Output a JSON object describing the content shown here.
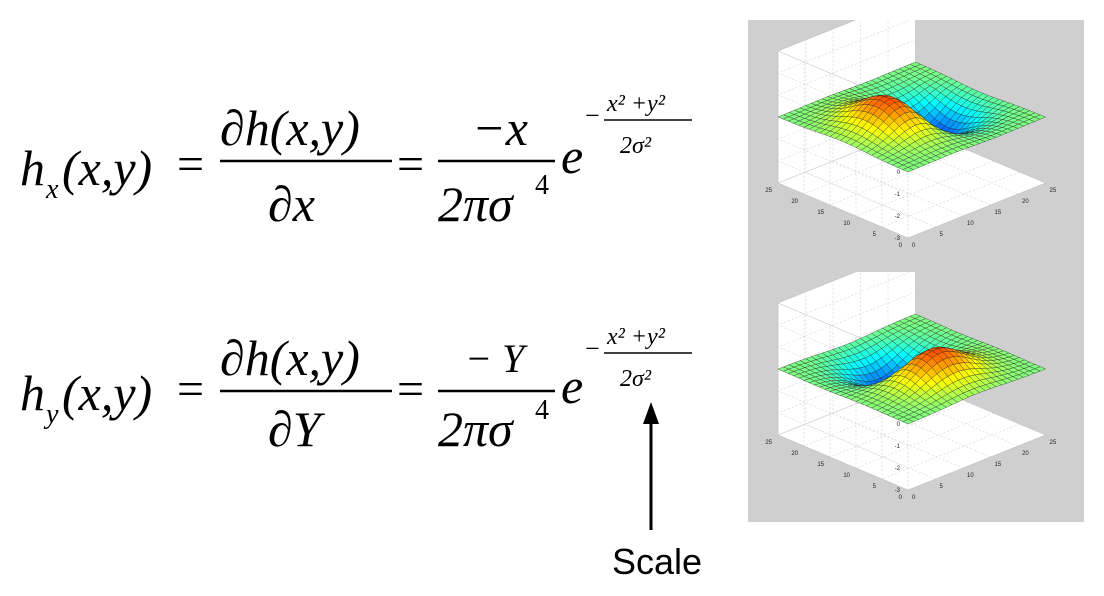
{
  "equations": {
    "hx": {
      "lhs_h": "h",
      "lhs_sub": "x",
      "lhs_args": "(x,y)",
      "eq1": "=",
      "num1": "∂h(x,y)",
      "den1": "∂x",
      "eq2": "=",
      "num2": "−x",
      "den2": "2πσ",
      "den2_exp": "4",
      "e": "e",
      "exp_sign": "−",
      "exp_num": "x² +y²",
      "exp_den": "2σ²"
    },
    "hy": {
      "lhs_h": "h",
      "lhs_sub": "y",
      "lhs_args": "(x,y)",
      "eq1": "=",
      "num1": "∂h(x,y)",
      "den1": "∂Y",
      "eq2": "=",
      "num2": "− Y",
      "den2": "2πσ",
      "den2_exp": "4",
      "e": "e",
      "exp_sign": "−",
      "exp_num": "x² +y²",
      "exp_den": "2σ²"
    }
  },
  "annotation": {
    "label": "Scale"
  },
  "plots": {
    "panel_color": "#cfcfcf",
    "z_ticks": [
      "3",
      "2",
      "1",
      "0",
      "-1",
      "-2",
      "-3"
    ],
    "left_ticks": [
      "25",
      "20",
      "15",
      "10",
      "5",
      "0"
    ],
    "right_ticks": [
      "0",
      "5",
      "10",
      "15",
      "20",
      "25"
    ],
    "top": {
      "kind": "derivative-of-gaussian-x"
    },
    "bottom": {
      "kind": "derivative-of-gaussian-y"
    }
  }
}
